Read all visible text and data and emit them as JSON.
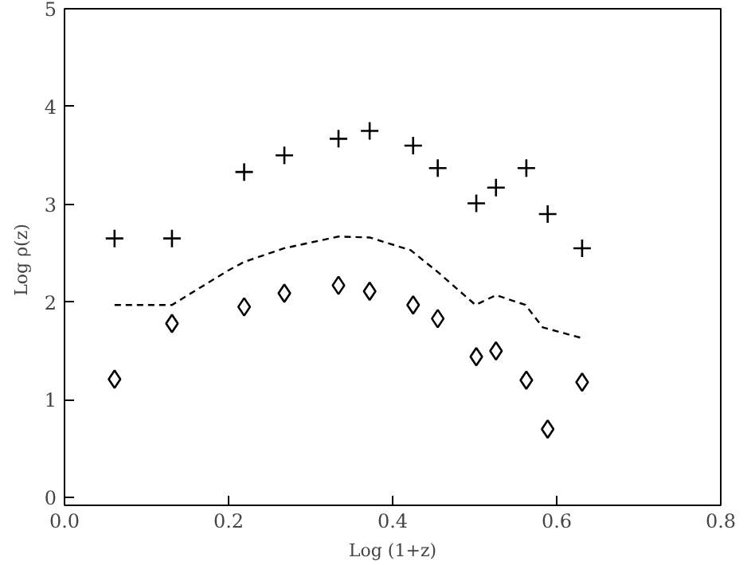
{
  "chart_data": {
    "type": "scatter",
    "xlabel": "Log (1+z)",
    "ylabel": "Log  ρ(z)",
    "xlim": [
      0.0,
      0.8
    ],
    "ylim": [
      -0.08,
      5
    ],
    "xticks": [
      {
        "value": 0.0,
        "label": "0.0"
      },
      0.2,
      0.4,
      0.6,
      0.8
    ],
    "yticks": [
      0,
      1,
      2,
      3,
      4,
      5
    ],
    "grid": false,
    "series": [
      {
        "marker": "cross",
        "color": "#000000",
        "x": [
          0.061,
          0.131,
          0.219,
          0.268,
          0.334,
          0.372,
          0.425,
          0.455,
          0.502,
          0.526,
          0.563,
          0.589,
          0.631
        ],
        "values": [
          2.65,
          2.65,
          3.33,
          3.5,
          3.67,
          3.75,
          3.6,
          3.37,
          3.01,
          3.17,
          3.37,
          2.9,
          2.55
        ]
      },
      {
        "marker": "diamond",
        "color": "#000000",
        "x": [
          0.061,
          0.131,
          0.219,
          0.268,
          0.334,
          0.372,
          0.425,
          0.455,
          0.502,
          0.526,
          0.563,
          0.589,
          0.631
        ],
        "values": [
          1.21,
          1.78,
          1.95,
          2.09,
          2.17,
          2.11,
          1.97,
          1.83,
          1.44,
          1.5,
          1.2,
          0.7,
          1.18
        ]
      },
      {
        "type": "line",
        "line_style": "dashed",
        "color": "#000000",
        "x": [
          0.061,
          0.131,
          0.199,
          0.219,
          0.268,
          0.334,
          0.372,
          0.422,
          0.456,
          0.501,
          0.526,
          0.562,
          0.583,
          0.631
        ],
        "values": [
          1.97,
          1.97,
          2.32,
          2.41,
          2.55,
          2.67,
          2.66,
          2.53,
          2.3,
          1.97,
          2.07,
          1.97,
          1.74,
          1.63
        ]
      }
    ]
  }
}
